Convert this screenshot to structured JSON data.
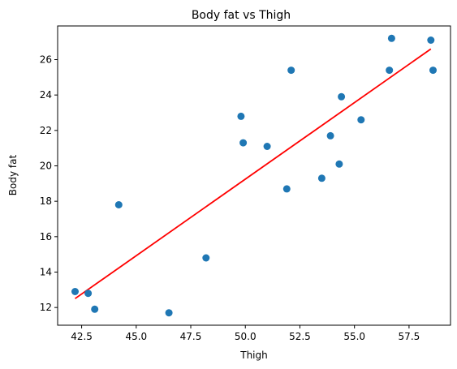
{
  "chart_data": {
    "type": "scatter",
    "title": "Body fat vs Thigh",
    "xlabel": "Thigh",
    "ylabel": "Body fat",
    "xlim": [
      41.4,
      59.4
    ],
    "ylim": [
      11.0,
      27.9
    ],
    "xticks": [
      42.5,
      45.0,
      47.5,
      50.0,
      52.5,
      55.0,
      57.5
    ],
    "xtick_labels": [
      "42.5",
      "45.0",
      "47.5",
      "50.0",
      "52.5",
      "55.0",
      "57.5"
    ],
    "yticks": [
      12,
      14,
      16,
      18,
      20,
      22,
      24,
      26
    ],
    "ytick_labels": [
      "12",
      "14",
      "16",
      "18",
      "20",
      "22",
      "24",
      "26"
    ],
    "grid": false,
    "series": [
      {
        "type": "scatter",
        "color": "#1f77b4",
        "points": [
          {
            "x": 42.2,
            "y": 12.9
          },
          {
            "x": 42.8,
            "y": 12.8
          },
          {
            "x": 43.1,
            "y": 11.9
          },
          {
            "x": 44.2,
            "y": 17.8
          },
          {
            "x": 46.5,
            "y": 11.7
          },
          {
            "x": 48.2,
            "y": 14.8
          },
          {
            "x": 49.8,
            "y": 22.8
          },
          {
            "x": 49.9,
            "y": 21.3
          },
          {
            "x": 51.0,
            "y": 21.1
          },
          {
            "x": 51.9,
            "y": 18.7
          },
          {
            "x": 52.1,
            "y": 25.4
          },
          {
            "x": 53.5,
            "y": 19.3
          },
          {
            "x": 53.9,
            "y": 21.7
          },
          {
            "x": 54.3,
            "y": 20.1
          },
          {
            "x": 54.4,
            "y": 23.9
          },
          {
            "x": 55.3,
            "y": 22.6
          },
          {
            "x": 56.6,
            "y": 25.4
          },
          {
            "x": 56.7,
            "y": 27.2
          },
          {
            "x": 58.5,
            "y": 27.1
          },
          {
            "x": 58.6,
            "y": 25.4
          }
        ]
      },
      {
        "type": "line",
        "color": "#ff0000",
        "points": [
          {
            "x": 42.2,
            "y": 12.5
          },
          {
            "x": 58.5,
            "y": 26.6
          }
        ]
      }
    ]
  }
}
